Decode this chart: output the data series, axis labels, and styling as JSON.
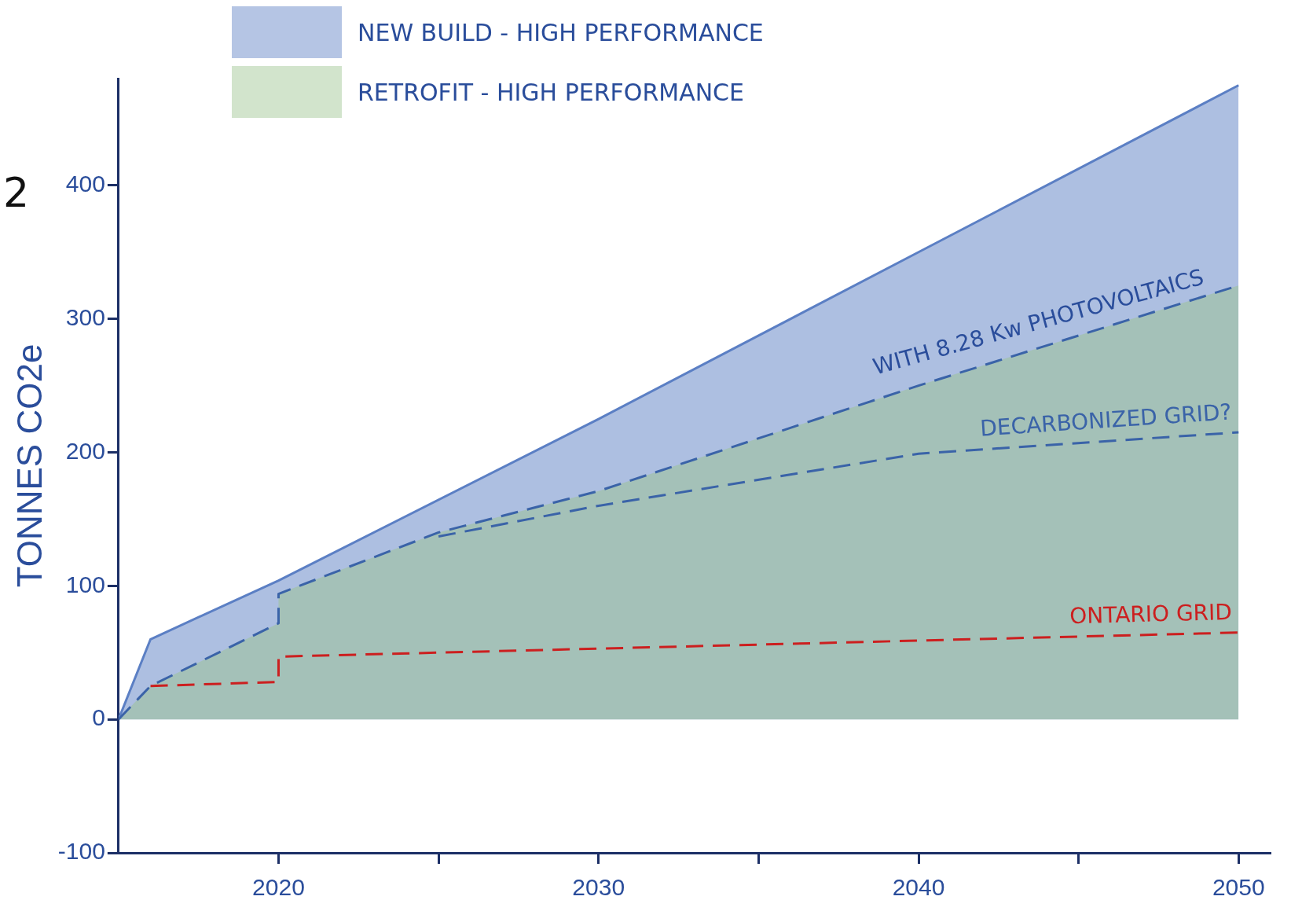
{
  "chart_data": {
    "type": "area",
    "ylabel": "TONNES CO2e",
    "annotations": [
      "2",
      {
        "text": "WITH 8.28 Kw PHOTOVOLTAICS",
        "x": 2049,
        "y": 318
      }
    ],
    "legend": "top left",
    "marker": "none",
    "xlim": [
      2015,
      2051
    ],
    "ylim": [
      -100,
      480
    ],
    "xticks": [
      {
        "value": 2020,
        "label": "2020"
      },
      {
        "value": 2025,
        "label": null
      },
      {
        "value": 2030,
        "label": "2030"
      },
      {
        "value": 2035,
        "label": null
      },
      {
        "value": 2040,
        "label": "2040"
      },
      {
        "value": 2045,
        "label": null
      },
      {
        "value": 2050,
        "label": "2050"
      }
    ],
    "yticks": [
      -100,
      0,
      100,
      200,
      300,
      400
    ],
    "series": [
      {
        "name": "NEW BUILD - HIGH PERFORMANCE",
        "type": "area",
        "color": "#5b7fc4",
        "x": [
          2015,
          2016,
          2020,
          2030,
          2040,
          2050
        ],
        "values": [
          0,
          60,
          104,
          225,
          350,
          475
        ]
      },
      {
        "name": "RETROFIT - HIGH PERFORMANCE",
        "type": "area",
        "line_style": "dashed",
        "color": "#9cc48f",
        "x": [
          2015,
          2016,
          2020,
          2020,
          2025,
          2030,
          2040,
          2050
        ],
        "values": [
          0,
          25,
          72,
          94,
          140,
          171,
          250,
          325
        ]
      },
      {
        "name": "DECARBONIZED GRID?",
        "type": "line",
        "line_style": "dashed",
        "color": "#3a63a8",
        "x": [
          2025,
          2030,
          2040,
          2050
        ],
        "values": [
          137,
          160,
          199,
          215
        ]
      },
      {
        "name": "ONTARIO GRID",
        "type": "line",
        "line_style": "dashed",
        "color": "#cc1f1f",
        "x": [
          2016,
          2020,
          2020,
          2050
        ],
        "values": [
          25,
          28,
          47,
          65
        ]
      }
    ]
  }
}
